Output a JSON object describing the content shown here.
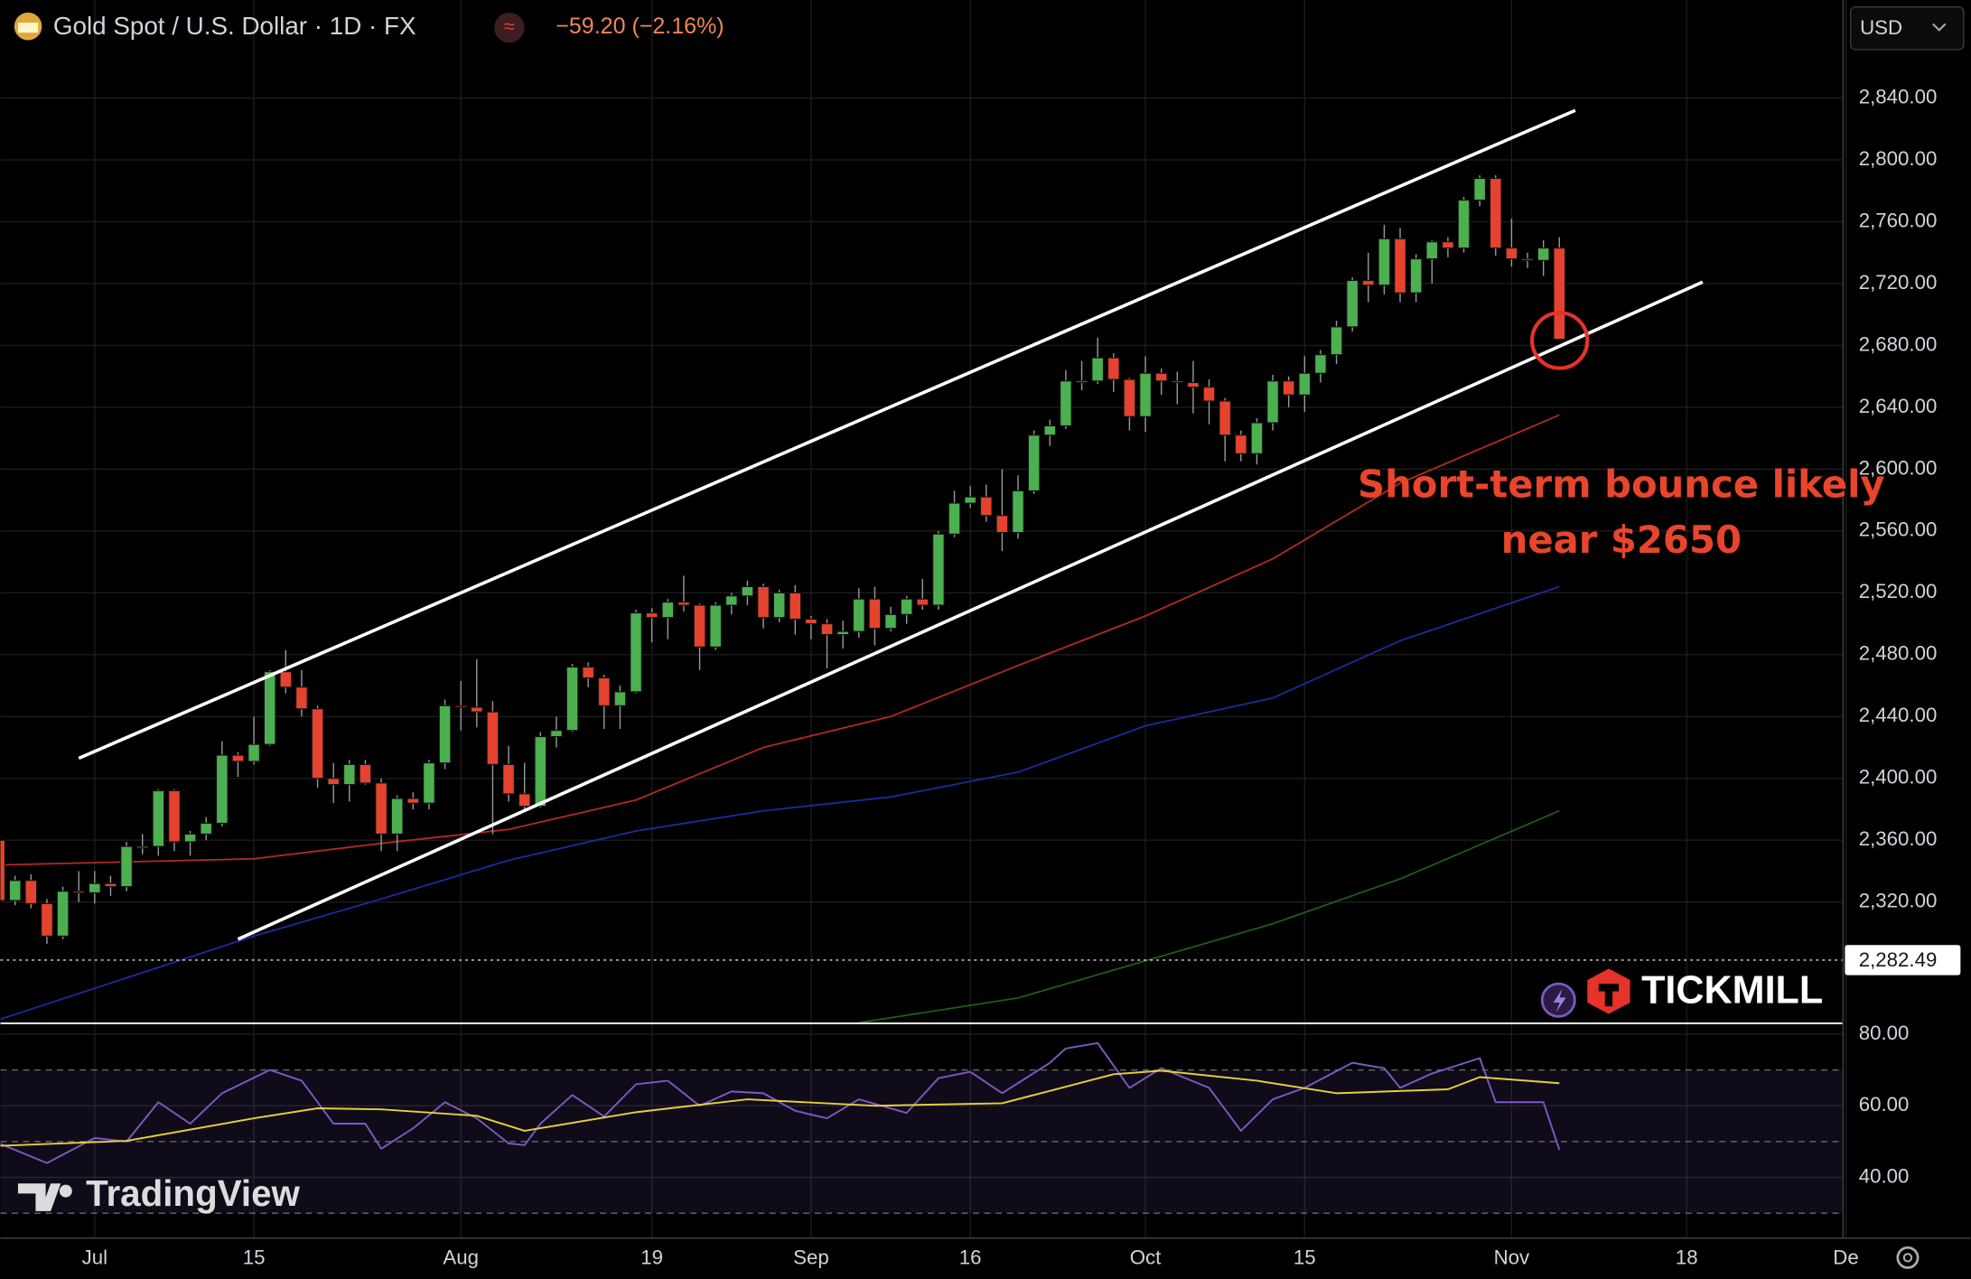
{
  "header": {
    "title": "Gold Spot / U.S. Dollar · 1D · FX",
    "change": "−59.20 (−2.16%)",
    "currency": "USD"
  },
  "watermarks": [
    "TradingView",
    "TICKMILL"
  ],
  "chart_data": [
    {
      "type": "candlestick",
      "up_color": "#4caf50",
      "down_color": "#e5432f",
      "grid": true,
      "xlim": [
        -5.92,
        109.78
      ],
      "ylim": [
        2242,
        2903.4
      ],
      "xticks": [
        {
          "value": 0,
          "label": "Jul"
        },
        {
          "value": 10,
          "label": "15"
        },
        {
          "value": 23,
          "label": "Aug"
        },
        {
          "value": 35,
          "label": "19"
        },
        {
          "value": 45,
          "label": "Sep"
        },
        {
          "value": 55,
          "label": "16"
        },
        {
          "value": 66,
          "label": "Oct"
        },
        {
          "value": 76,
          "label": "15"
        },
        {
          "value": 89,
          "label": "Nov"
        },
        {
          "value": 100,
          "label": "18"
        },
        {
          "value": 110,
          "label": "De"
        }
      ],
      "yticks": [
        {
          "value": 2320,
          "label": "2,320.00"
        },
        {
          "value": 2360,
          "label": "2,360.00"
        },
        {
          "value": 2400,
          "label": "2,400.00"
        },
        {
          "value": 2440,
          "label": "2,440.00"
        },
        {
          "value": 2480,
          "label": "2,480.00"
        },
        {
          "value": 2520,
          "label": "2,520.00"
        },
        {
          "value": 2560,
          "label": "2,560.00"
        },
        {
          "value": 2600,
          "label": "2,600.00"
        },
        {
          "value": 2640,
          "label": "2,640.00"
        },
        {
          "value": 2680,
          "label": "2,680.00"
        },
        {
          "value": 2720,
          "label": "2,720.00"
        },
        {
          "value": 2760,
          "label": "2,760.00"
        },
        {
          "value": 2800,
          "label": "2,800.00"
        },
        {
          "value": 2840,
          "label": "2,840.00"
        }
      ],
      "price_line": {
        "value": 2282.49,
        "label": "2,282.49"
      },
      "annotations": [
        "Short-term bounce likely",
        "near $2650"
      ],
      "annotation_color": "#e8452c",
      "candles": {
        "x": [
          -6,
          -5,
          -4,
          -3,
          -2,
          -1,
          0,
          1,
          2,
          3,
          4,
          5,
          6,
          7,
          8,
          9,
          10,
          11,
          12,
          13,
          14,
          15,
          16,
          17,
          18,
          19,
          20,
          21,
          22,
          23,
          24,
          25,
          26,
          27,
          28,
          29,
          30,
          31,
          32,
          33,
          34,
          35,
          36,
          37,
          38,
          39,
          40,
          41,
          42,
          43,
          44,
          45,
          46,
          47,
          48,
          49,
          50,
          51,
          52,
          53,
          54,
          55,
          56,
          57,
          58,
          59,
          60,
          61,
          62,
          63,
          64,
          65,
          66,
          67,
          68,
          69,
          70,
          71,
          72,
          73,
          74,
          75,
          76,
          77,
          78,
          79,
          80,
          81,
          82,
          83,
          84,
          85,
          86,
          87,
          88,
          89,
          90,
          91,
          92
        ],
        "open": [
          2360,
          2321,
          2334,
          2319,
          2298,
          2327,
          2326,
          2332,
          2330,
          2355,
          2356,
          2392,
          2359,
          2364,
          2371,
          2415,
          2411,
          2422,
          2469,
          2459,
          2445,
          2400,
          2396,
          2409,
          2397,
          2364,
          2387,
          2384,
          2410,
          2447,
          2446,
          2443,
          2409,
          2390,
          2382,
          2427,
          2431,
          2472,
          2465,
          2447,
          2456,
          2507,
          2504,
          2514,
          2512,
          2485,
          2512,
          2518,
          2524,
          2504,
          2520,
          2503,
          2500,
          2493,
          2495,
          2516,
          2497,
          2506,
          2516,
          2512,
          2558,
          2578,
          2582,
          2570,
          2559,
          2586,
          2622,
          2628,
          2656,
          2657,
          2672,
          2658,
          2634,
          2662,
          2657,
          2656,
          2653,
          2644,
          2622,
          2610,
          2630,
          2657,
          2648,
          2662,
          2674,
          2692,
          2722,
          2719,
          2749,
          2714,
          2736,
          2747,
          2743,
          2774,
          2788,
          2743,
          2736,
          2735,
          2743
        ],
        "high": [
          2368,
          2337,
          2338,
          2322,
          2330,
          2340,
          2340,
          2337,
          2359,
          2364,
          2393,
          2393,
          2366,
          2375,
          2424,
          2417,
          2440,
          2470,
          2483,
          2470,
          2447,
          2410,
          2412,
          2412,
          2400,
          2389,
          2391,
          2412,
          2451,
          2463,
          2477,
          2450,
          2421,
          2410,
          2430,
          2440,
          2474,
          2475,
          2467,
          2460,
          2509,
          2510,
          2516,
          2531,
          2513,
          2514,
          2520,
          2528,
          2526,
          2522,
          2525,
          2505,
          2503,
          2502,
          2523,
          2524,
          2511,
          2518,
          2529,
          2560,
          2586,
          2589,
          2590,
          2600,
          2596,
          2625,
          2632,
          2664,
          2670,
          2685,
          2675,
          2659,
          2673,
          2665,
          2663,
          2670,
          2658,
          2646,
          2625,
          2633,
          2661,
          2660,
          2673,
          2677,
          2696,
          2724,
          2740,
          2758,
          2756,
          2739,
          2748,
          2750,
          2776,
          2790,
          2790,
          2762,
          2740,
          2748,
          2750
        ],
        "low": [
          2316,
          2318,
          2316,
          2293,
          2296,
          2320,
          2319,
          2324,
          2327,
          2351,
          2350,
          2353,
          2350,
          2360,
          2369,
          2401,
          2409,
          2421,
          2455,
          2440,
          2394,
          2384,
          2385,
          2396,
          2353,
          2353,
          2380,
          2380,
          2406,
          2431,
          2433,
          2364,
          2385,
          2380,
          2381,
          2420,
          2430,
          2459,
          2432,
          2432,
          2455,
          2488,
          2490,
          2508,
          2470,
          2483,
          2506,
          2512,
          2497,
          2501,
          2493,
          2490,
          2471,
          2484,
          2491,
          2486,
          2495,
          2500,
          2509,
          2509,
          2556,
          2575,
          2566,
          2547,
          2555,
          2584,
          2615,
          2626,
          2651,
          2655,
          2650,
          2625,
          2624,
          2648,
          2642,
          2636,
          2629,
          2605,
          2605,
          2603,
          2625,
          2640,
          2637,
          2656,
          2668,
          2689,
          2708,
          2713,
          2708,
          2708,
          2720,
          2737,
          2740,
          2770,
          2738,
          2731,
          2730,
          2725,
          2684
        ],
        "close": [
          2321,
          2334,
          2319,
          2298,
          2327,
          2326,
          2332,
          2330,
          2356,
          2356,
          2392,
          2359,
          2364,
          2371,
          2415,
          2411,
          2422,
          2469,
          2459,
          2445,
          2400,
          2396,
          2409,
          2397,
          2364,
          2387,
          2384,
          2410,
          2447,
          2446,
          2443,
          2409,
          2390,
          2382,
          2427,
          2431,
          2472,
          2465,
          2447,
          2456,
          2507,
          2504,
          2514,
          2512,
          2485,
          2512,
          2518,
          2524,
          2504,
          2520,
          2503,
          2500,
          2493,
          2495,
          2516,
          2497,
          2506,
          2516,
          2512,
          2558,
          2578,
          2582,
          2570,
          2559,
          2586,
          2622,
          2628,
          2657,
          2657,
          2672,
          2658,
          2634,
          2662,
          2657,
          2656,
          2653,
          2644,
          2622,
          2610,
          2630,
          2657,
          2648,
          2662,
          2674,
          2692,
          2722,
          2719,
          2749,
          2714,
          2736,
          2747,
          2743,
          2774,
          2788,
          2743,
          2736,
          2735,
          2743,
          2684
        ]
      },
      "series": [
        {
          "color": "#b22a22",
          "x": [
            -6,
            10,
            18,
            26,
            34,
            42,
            50,
            58,
            66,
            74,
            82,
            92
          ],
          "values": [
            2344,
            2348,
            2358,
            2367,
            2386,
            2420,
            2440,
            2473,
            2505,
            2542,
            2591,
            2635
          ]
        },
        {
          "color": "#1d2a9c",
          "x": [
            -6,
            10,
            18,
            26,
            34,
            42,
            50,
            58,
            66,
            74,
            82,
            92
          ],
          "values": [
            2244,
            2298,
            2322,
            2347,
            2366,
            2379,
            2388,
            2404,
            2434,
            2452,
            2489,
            2524
          ]
        },
        {
          "color": "#1f5c1f",
          "x": [
            48,
            58,
            66,
            74,
            82,
            92
          ],
          "values": [
            2242,
            2258,
            2282,
            2306,
            2335,
            2379
          ]
        }
      ],
      "trendlines": [
        {
          "color": "#ffffff",
          "x": [
            -1,
            93
          ],
          "values": [
            2413,
            2832
          ]
        },
        {
          "color": "#ffffff",
          "x": [
            9,
            101
          ],
          "values": [
            2296,
            2721
          ]
        }
      ]
    },
    {
      "type": "line",
      "xlim": [
        -5.92,
        109.78
      ],
      "ylim": [
        23.2,
        82.5
      ],
      "yticks": [
        {
          "value": 80,
          "label": "80.00"
        },
        {
          "value": 60,
          "label": "60.00"
        },
        {
          "value": 40,
          "label": "40.00"
        }
      ],
      "levels": [
        70,
        50,
        30
      ],
      "series": [
        {
          "color": "#7e57c2",
          "x": [
            -6,
            -3,
            0,
            2,
            4,
            6,
            8,
            11,
            13,
            15,
            17,
            18,
            20,
            22,
            24,
            26,
            27,
            28,
            30,
            32,
            34,
            36,
            38,
            40,
            42,
            44,
            46,
            48,
            51,
            53,
            55,
            57,
            60,
            61,
            63,
            65,
            67,
            70,
            72,
            74,
            76,
            79,
            81,
            82,
            84,
            87,
            88,
            91,
            92
          ],
          "values": [
            49.5,
            44,
            51,
            50,
            61,
            55,
            63.5,
            70,
            67,
            55,
            55,
            48,
            53.7,
            61,
            56.5,
            49.5,
            49,
            55,
            63,
            57,
            66,
            67,
            60,
            64,
            63.5,
            58.6,
            56.5,
            61.8,
            58,
            67.7,
            69.5,
            63.5,
            72,
            76,
            77.5,
            65,
            70.5,
            65,
            53,
            61.8,
            65,
            72,
            70.5,
            65,
            69,
            73.3,
            61,
            61,
            47.7
          ]
        },
        {
          "color": "#e6cf3a",
          "x": [
            -6,
            2,
            10,
            14,
            18,
            24,
            27,
            34,
            41,
            49,
            57,
            64,
            67,
            73,
            78,
            85,
            87,
            92
          ],
          "values": [
            48.8,
            50.2,
            56.5,
            59.3,
            59,
            57.2,
            53,
            58.2,
            61.8,
            60,
            60.7,
            68.8,
            69.8,
            67,
            63.5,
            64.6,
            68,
            66.3
          ]
        }
      ]
    }
  ]
}
